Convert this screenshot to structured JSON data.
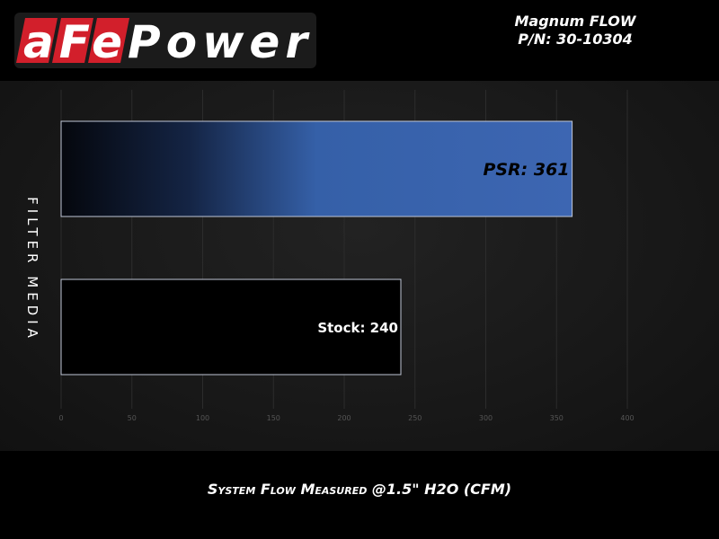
{
  "header": {
    "brand": "aFePower",
    "title_line1": "Magnum FLOW",
    "title_line2": "P/N: 30-10304"
  },
  "chart_data": {
    "type": "bar",
    "orientation": "horizontal",
    "categories": [
      "PSR",
      "Stock"
    ],
    "values": [
      361,
      240
    ],
    "data_labels": [
      "PSR: 361",
      "Stock: 240"
    ],
    "xlabel": "System Flow Measured @1.5\" H2O (CFM)",
    "ylabel": "FILTER MEDIA",
    "xlim": [
      0,
      400
    ],
    "xticks": [
      0,
      50,
      100,
      150,
      200,
      250,
      300,
      350,
      400
    ],
    "grid": true,
    "colors": {
      "PSR": "#3d65b0",
      "Stock": "#000000"
    }
  }
}
